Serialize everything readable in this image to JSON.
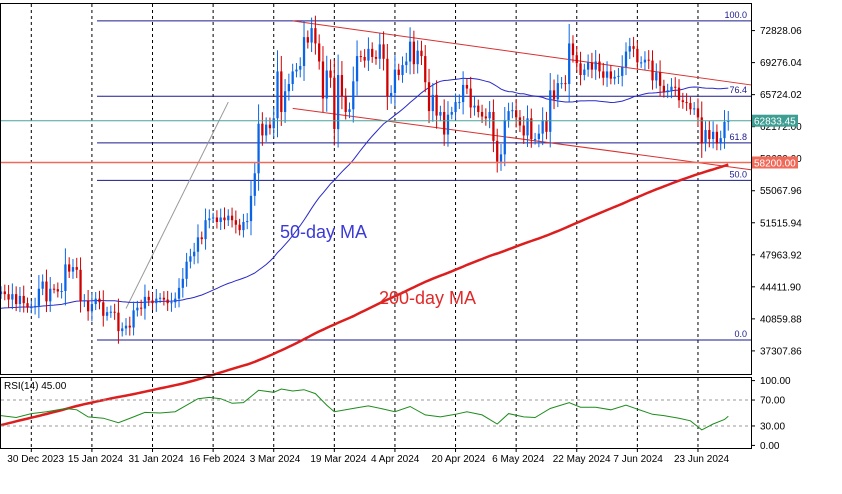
{
  "chart_data": {
    "type": "candlestick",
    "instrument_panel": {
      "y_ticks": [
        72828.06,
        69276.04,
        65724.02,
        62172.0,
        58620.0,
        55067.96,
        51515.94,
        47963.92,
        44411.9,
        40859.88,
        37307.86
      ],
      "y_tick_labels": [
        "72828.06",
        "69276.04",
        "65724.02",
        "62172.00",
        "58620.00",
        "55067.96",
        "51515.94",
        "47963.92",
        "44411.90",
        "40859.88",
        "37307.86"
      ],
      "ylim": [
        34745,
        75775
      ],
      "current_price": 62833.45,
      "current_price_label": "62833.45",
      "support_price": 58200.0,
      "support_price_label": "58200.00",
      "fibonacci": {
        "low": 38520,
        "high": 73900,
        "levels": [
          {
            "label": "100.0",
            "value": 73900
          },
          {
            "label": "76.4",
            "value": 65550
          },
          {
            "label": "61.8",
            "value": 60380
          },
          {
            "label": "50.0",
            "value": 56210
          },
          {
            "label": "0.0",
            "value": 38520
          }
        ]
      },
      "ma50_label": "50-day MA",
      "ma200_label": "200-day MA",
      "trendlines": [
        {
          "x0": "2024-03-08",
          "y0": 73900,
          "x1": "2024-07-07",
          "y1": 66800
        },
        {
          "x0": "2024-03-08",
          "y0": 64200,
          "x1": "2024-07-07",
          "y1": 57400
        },
        {
          "x0": "2024-02-20",
          "y0": 64900,
          "x1": "2024-01-24",
          "y1": 42000
        }
      ]
    },
    "x_ticks": [
      "30 Dec 2023",
      "15 Jan 2024",
      "31 Jan 2024",
      "16 Feb 2024",
      "3 Mar 2024",
      "19 Mar 2024",
      "4 Apr 2024",
      "20 Apr 2024",
      "6 May 2024",
      "22 May 2024",
      "7 Jun 2024",
      "23 Jun 2024"
    ],
    "x_range": [
      "2023-12-22",
      "2024-07-07"
    ],
    "daily_close": [
      [
        "2023-12-22",
        43900
      ],
      [
        "2023-12-23",
        43600
      ],
      [
        "2023-12-24",
        43000
      ],
      [
        "2023-12-25",
        43600
      ],
      [
        "2023-12-26",
        42500
      ],
      [
        "2023-12-27",
        43400
      ],
      [
        "2023-12-28",
        42600
      ],
      [
        "2023-12-29",
        42100
      ],
      [
        "2023-12-30",
        42150
      ],
      [
        "2023-12-31",
        42300
      ],
      [
        "2024-01-01",
        44200
      ],
      [
        "2024-01-02",
        45000
      ],
      [
        "2024-01-03",
        42800
      ],
      [
        "2024-01-04",
        44200
      ],
      [
        "2024-01-05",
        44150
      ],
      [
        "2024-01-06",
        43900
      ],
      [
        "2024-01-07",
        43950
      ],
      [
        "2024-01-08",
        46900
      ],
      [
        "2024-01-09",
        46100
      ],
      [
        "2024-01-10",
        46600
      ],
      [
        "2024-01-11",
        46300
      ],
      [
        "2024-01-12",
        42800
      ],
      [
        "2024-01-13",
        42900
      ],
      [
        "2024-01-14",
        41700
      ],
      [
        "2024-01-15",
        42500
      ],
      [
        "2024-01-16",
        43100
      ],
      [
        "2024-01-17",
        42700
      ],
      [
        "2024-01-18",
        41200
      ],
      [
        "2024-01-19",
        41600
      ],
      [
        "2024-01-20",
        41650
      ],
      [
        "2024-01-21",
        41550
      ],
      [
        "2024-01-22",
        39500
      ],
      [
        "2024-01-23",
        39800
      ],
      [
        "2024-01-24",
        40100
      ],
      [
        "2024-01-25",
        39900
      ],
      [
        "2024-01-26",
        41800
      ],
      [
        "2024-01-27",
        42100
      ],
      [
        "2024-01-28",
        42000
      ],
      [
        "2024-01-29",
        43300
      ],
      [
        "2024-01-30",
        42900
      ],
      [
        "2024-01-31",
        42600
      ],
      [
        "2024-02-01",
        43100
      ],
      [
        "2024-02-02",
        43200
      ],
      [
        "2024-02-03",
        43000
      ],
      [
        "2024-02-04",
        42600
      ],
      [
        "2024-02-05",
        42700
      ],
      [
        "2024-02-06",
        43100
      ],
      [
        "2024-02-07",
        44300
      ],
      [
        "2024-02-08",
        45300
      ],
      [
        "2024-02-09",
        47200
      ],
      [
        "2024-02-10",
        47800
      ],
      [
        "2024-02-11",
        48300
      ],
      [
        "2024-02-12",
        49900
      ],
      [
        "2024-02-13",
        49700
      ],
      [
        "2024-02-14",
        51800
      ],
      [
        "2024-02-15",
        52000
      ],
      [
        "2024-02-16",
        52100
      ],
      [
        "2024-02-17",
        51600
      ],
      [
        "2024-02-18",
        52100
      ],
      [
        "2024-02-19",
        51800
      ],
      [
        "2024-02-20",
        52300
      ],
      [
        "2024-02-21",
        51800
      ],
      [
        "2024-02-22",
        51300
      ],
      [
        "2024-02-23",
        50700
      ],
      [
        "2024-02-24",
        51600
      ],
      [
        "2024-02-25",
        51700
      ],
      [
        "2024-02-26",
        54500
      ],
      [
        "2024-02-27",
        57000
      ],
      [
        "2024-02-28",
        62500
      ],
      [
        "2024-02-29",
        61200
      ],
      [
        "2024-03-01",
        62400
      ],
      [
        "2024-03-02",
        62000
      ],
      [
        "2024-03-03",
        63100
      ],
      [
        "2024-03-04",
        68300
      ],
      [
        "2024-03-05",
        63800
      ],
      [
        "2024-03-06",
        66100
      ],
      [
        "2024-03-07",
        66900
      ],
      [
        "2024-03-08",
        68300
      ],
      [
        "2024-03-09",
        68500
      ],
      [
        "2024-03-10",
        68900
      ],
      [
        "2024-03-11",
        72100
      ],
      [
        "2024-03-12",
        71500
      ],
      [
        "2024-03-13",
        73100
      ],
      [
        "2024-03-14",
        71400
      ],
      [
        "2024-03-15",
        69400
      ],
      [
        "2024-03-16",
        65300
      ],
      [
        "2024-03-17",
        68400
      ],
      [
        "2024-03-18",
        67600
      ],
      [
        "2024-03-19",
        61900
      ],
      [
        "2024-03-20",
        67900
      ],
      [
        "2024-03-21",
        65500
      ],
      [
        "2024-03-22",
        63800
      ],
      [
        "2024-03-23",
        64100
      ],
      [
        "2024-03-24",
        67200
      ],
      [
        "2024-03-25",
        70000
      ],
      [
        "2024-03-26",
        69900
      ],
      [
        "2024-03-27",
        69500
      ],
      [
        "2024-03-28",
        70800
      ],
      [
        "2024-03-29",
        69900
      ],
      [
        "2024-03-30",
        69700
      ],
      [
        "2024-03-31",
        71300
      ],
      [
        "2024-04-01",
        69700
      ],
      [
        "2024-04-02",
        65500
      ],
      [
        "2024-04-03",
        65900
      ],
      [
        "2024-04-04",
        68500
      ],
      [
        "2024-04-05",
        67900
      ],
      [
        "2024-04-06",
        69000
      ],
      [
        "2024-04-07",
        69400
      ],
      [
        "2024-04-08",
        71600
      ],
      [
        "2024-04-09",
        69100
      ],
      [
        "2024-04-10",
        70600
      ],
      [
        "2024-04-11",
        70000
      ],
      [
        "2024-04-12",
        67100
      ],
      [
        "2024-04-13",
        63900
      ],
      [
        "2024-04-14",
        65700
      ],
      [
        "2024-04-15",
        63400
      ],
      [
        "2024-04-16",
        63800
      ],
      [
        "2024-04-17",
        61300
      ],
      [
        "2024-04-18",
        63500
      ],
      [
        "2024-04-19",
        63800
      ],
      [
        "2024-04-20",
        64900
      ],
      [
        "2024-04-21",
        64900
      ],
      [
        "2024-04-22",
        66800
      ],
      [
        "2024-04-23",
        66400
      ],
      [
        "2024-04-24",
        64300
      ],
      [
        "2024-04-25",
        64500
      ],
      [
        "2024-04-26",
        63800
      ],
      [
        "2024-04-27",
        63300
      ],
      [
        "2024-04-28",
        63100
      ],
      [
        "2024-04-29",
        63800
      ],
      [
        "2024-04-30",
        60600
      ],
      [
        "2024-05-01",
        58300
      ],
      [
        "2024-05-02",
        59100
      ],
      [
        "2024-05-03",
        62900
      ],
      [
        "2024-05-04",
        63900
      ],
      [
        "2024-05-05",
        64000
      ],
      [
        "2024-05-06",
        63200
      ],
      [
        "2024-05-07",
        62300
      ],
      [
        "2024-05-08",
        61200
      ],
      [
        "2024-05-09",
        63100
      ],
      [
        "2024-05-10",
        60800
      ],
      [
        "2024-05-11",
        60800
      ],
      [
        "2024-05-12",
        61400
      ],
      [
        "2024-05-13",
        62900
      ],
      [
        "2024-05-14",
        61600
      ],
      [
        "2024-05-15",
        66200
      ],
      [
        "2024-05-16",
        65200
      ],
      [
        "2024-05-17",
        67000
      ],
      [
        "2024-05-18",
        67000
      ],
      [
        "2024-05-19",
        66900
      ],
      [
        "2024-05-20",
        71400
      ],
      [
        "2024-05-21",
        70100
      ],
      [
        "2024-05-22",
        69200
      ],
      [
        "2024-05-23",
        67900
      ],
      [
        "2024-05-24",
        68500
      ],
      [
        "2024-05-25",
        69300
      ],
      [
        "2024-05-26",
        68500
      ],
      [
        "2024-05-27",
        69400
      ],
      [
        "2024-05-28",
        68300
      ],
      [
        "2024-05-29",
        67600
      ],
      [
        "2024-05-30",
        68300
      ],
      [
        "2024-05-31",
        67500
      ],
      [
        "2024-06-01",
        67700
      ],
      [
        "2024-06-02",
        67800
      ],
      [
        "2024-06-03",
        68800
      ],
      [
        "2024-06-04",
        70500
      ],
      [
        "2024-06-05",
        71100
      ],
      [
        "2024-06-06",
        70800
      ],
      [
        "2024-06-07",
        69300
      ],
      [
        "2024-06-08",
        69300
      ],
      [
        "2024-06-09",
        69600
      ],
      [
        "2024-06-10",
        69500
      ],
      [
        "2024-06-11",
        67300
      ],
      [
        "2024-06-12",
        68200
      ],
      [
        "2024-06-13",
        66700
      ],
      [
        "2024-06-14",
        66000
      ],
      [
        "2024-06-15",
        66200
      ],
      [
        "2024-06-16",
        66600
      ],
      [
        "2024-06-17",
        66500
      ],
      [
        "2024-06-18",
        65100
      ],
      [
        "2024-06-19",
        64900
      ],
      [
        "2024-06-20",
        64800
      ],
      [
        "2024-06-21",
        64100
      ],
      [
        "2024-06-22",
        64200
      ],
      [
        "2024-06-23",
        63200
      ],
      [
        "2024-06-24",
        60300
      ],
      [
        "2024-06-25",
        61800
      ],
      [
        "2024-06-26",
        60800
      ],
      [
        "2024-06-27",
        61600
      ],
      [
        "2024-06-28",
        60300
      ],
      [
        "2024-06-29",
        60900
      ],
      [
        "2024-06-30",
        62700
      ],
      [
        "2024-07-01",
        62833
      ]
    ],
    "rsi_panel": {
      "label": "RSI(14) 45.00",
      "y_ticks": [
        100,
        70,
        30,
        0
      ],
      "y_tick_labels": [
        "100.00",
        "70.00",
        "30.00",
        "0.00"
      ],
      "ylim": [
        -4,
        104
      ],
      "values": [
        [
          "2023-12-22",
          46
        ],
        [
          "2023-12-26",
          43
        ],
        [
          "2023-12-30",
          49
        ],
        [
          "2024-01-03",
          52
        ],
        [
          "2024-01-08",
          57
        ],
        [
          "2024-01-11",
          55
        ],
        [
          "2024-01-14",
          44
        ],
        [
          "2024-01-18",
          42
        ],
        [
          "2024-01-22",
          35
        ],
        [
          "2024-01-26",
          44
        ],
        [
          "2024-01-29",
          51
        ],
        [
          "2024-02-02",
          50
        ],
        [
          "2024-02-06",
          52
        ],
        [
          "2024-02-09",
          62
        ],
        [
          "2024-02-12",
          72
        ],
        [
          "2024-02-15",
          74
        ],
        [
          "2024-02-18",
          72
        ],
        [
          "2024-02-21",
          65
        ],
        [
          "2024-02-24",
          66
        ],
        [
          "2024-02-28",
          85
        ],
        [
          "2024-03-03",
          82
        ],
        [
          "2024-03-05",
          87
        ],
        [
          "2024-03-08",
          84
        ],
        [
          "2024-03-11",
          86
        ],
        [
          "2024-03-14",
          80
        ],
        [
          "2024-03-17",
          62
        ],
        [
          "2024-03-19",
          52
        ],
        [
          "2024-03-22",
          55
        ],
        [
          "2024-03-25",
          58
        ],
        [
          "2024-03-28",
          61
        ],
        [
          "2024-04-01",
          56
        ],
        [
          "2024-04-04",
          52
        ],
        [
          "2024-04-08",
          60
        ],
        [
          "2024-04-12",
          47
        ],
        [
          "2024-04-16",
          44
        ],
        [
          "2024-04-20",
          48
        ],
        [
          "2024-04-23",
          52
        ],
        [
          "2024-04-27",
          47
        ],
        [
          "2024-05-01",
          33
        ],
        [
          "2024-05-04",
          49
        ],
        [
          "2024-05-08",
          44
        ],
        [
          "2024-05-11",
          43
        ],
        [
          "2024-05-15",
          57
        ],
        [
          "2024-05-20",
          66
        ],
        [
          "2024-05-23",
          59
        ],
        [
          "2024-05-27",
          59
        ],
        [
          "2024-05-31",
          55
        ],
        [
          "2024-06-04",
          62
        ],
        [
          "2024-06-07",
          56
        ],
        [
          "2024-06-11",
          48
        ],
        [
          "2024-06-14",
          46
        ],
        [
          "2024-06-18",
          42
        ],
        [
          "2024-06-21",
          38
        ],
        [
          "2024-06-24",
          24
        ],
        [
          "2024-06-27",
          33
        ],
        [
          "2024-06-30",
          40
        ],
        [
          "2024-07-01",
          45
        ]
      ]
    },
    "grid": false,
    "legend": "none"
  }
}
